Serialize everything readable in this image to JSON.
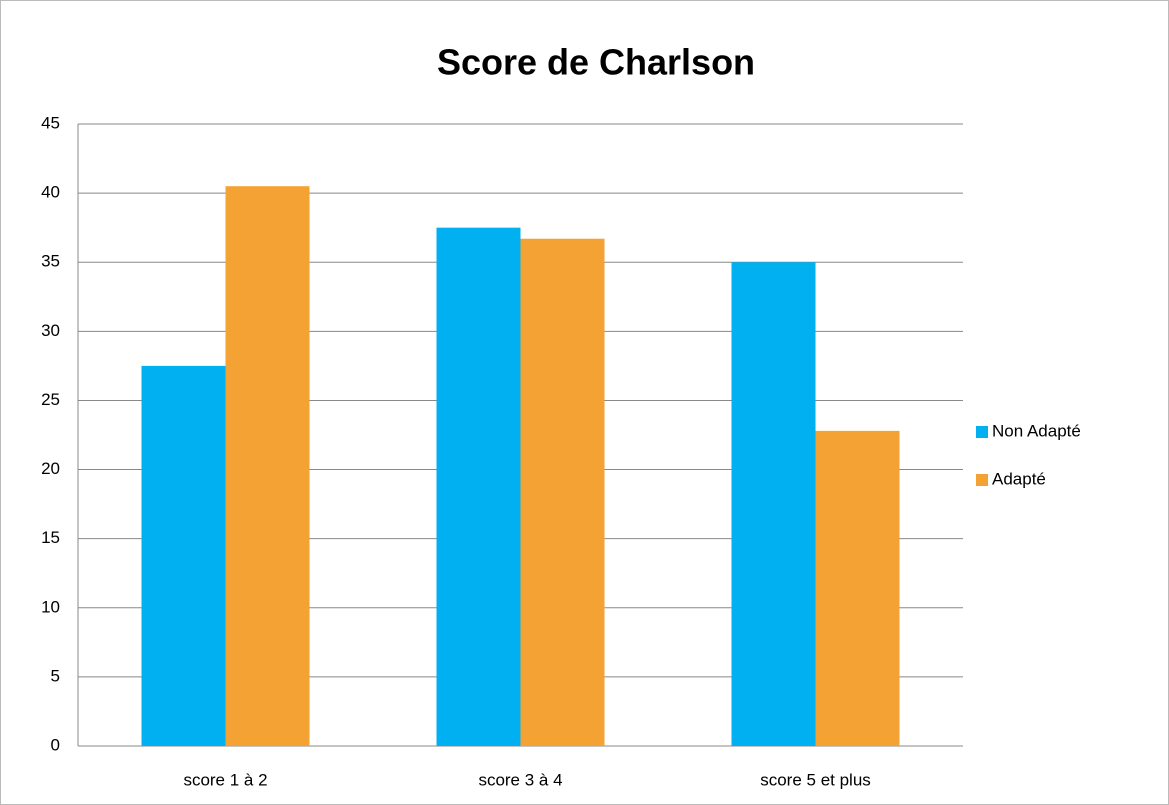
{
  "chart_data": {
    "type": "bar",
    "title": "Score de Charlson",
    "categories": [
      "score 1 à 2",
      "score 3 à 4",
      "score 5 et plus"
    ],
    "series": [
      {
        "name": "Non Adapté",
        "color": "#00b0f0",
        "values": [
          27.5,
          37.5,
          35
        ]
      },
      {
        "name": "Adapté",
        "color": "#f4a233",
        "values": [
          40.5,
          36.7,
          22.8
        ]
      }
    ],
    "ylim": [
      0,
      45
    ],
    "yticks": [
      0,
      5,
      10,
      15,
      20,
      25,
      30,
      35,
      40,
      45
    ],
    "grid": true,
    "legend": "right"
  }
}
